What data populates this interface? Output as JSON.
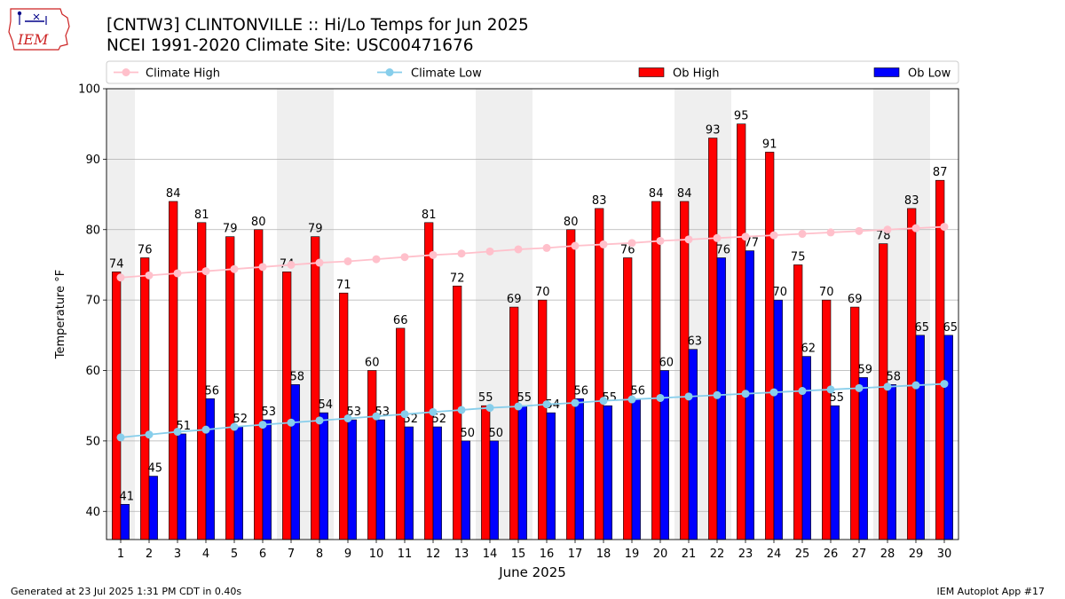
{
  "header": {
    "title_line1": "[CNTW3] CLINTONVILLE :: Hi/Lo Temps for Jun 2025",
    "title_line2": "NCEI 1991-2020 Climate Site: USC00471676",
    "logo_text": "IEM"
  },
  "footer": {
    "generated": "Generated at 23 Jul 2025 1:31 PM CDT in 0.40s",
    "app": "IEM Autoplot App #17"
  },
  "colors": {
    "ob_high": "#ff0000",
    "ob_low": "#0000ff",
    "climate_high": "#ffc0cb",
    "climate_low": "#87ceeb",
    "weekend_shade": "#efefef",
    "grid": "#b0b0b0"
  },
  "chart_data": {
    "type": "bar",
    "xlabel": "June 2025",
    "ylabel": "Temperature °F",
    "ylim": [
      36,
      100
    ],
    "yticks": [
      40,
      50,
      60,
      70,
      80,
      90,
      100
    ],
    "grid": "horizontal",
    "legend_position": "top",
    "categories": [
      "1",
      "2",
      "3",
      "4",
      "5",
      "6",
      "7",
      "8",
      "9",
      "10",
      "11",
      "12",
      "13",
      "14",
      "15",
      "16",
      "17",
      "18",
      "19",
      "20",
      "21",
      "22",
      "23",
      "24",
      "25",
      "26",
      "27",
      "28",
      "29",
      "30"
    ],
    "shaded_days": [
      1,
      7,
      8,
      14,
      15,
      21,
      22,
      28,
      29
    ],
    "series": [
      {
        "name": "Ob High",
        "kind": "bar",
        "values": [
          74,
          76,
          84,
          81,
          79,
          80,
          74,
          79,
          71,
          60,
          66,
          81,
          72,
          55,
          69,
          70,
          80,
          83,
          76,
          84,
          84,
          93,
          95,
          91,
          75,
          70,
          69,
          78,
          83,
          87
        ]
      },
      {
        "name": "Ob Low",
        "kind": "bar",
        "values": [
          41,
          45,
          51,
          56,
          52,
          53,
          58,
          54,
          53,
          53,
          52,
          52,
          50,
          50,
          55,
          54,
          56,
          55,
          56,
          60,
          63,
          76,
          77,
          70,
          62,
          55,
          59,
          58,
          65,
          65
        ]
      },
      {
        "name": "Climate High",
        "kind": "line",
        "values": [
          73.2,
          73.5,
          73.8,
          74.1,
          74.4,
          74.7,
          75.0,
          75.3,
          75.5,
          75.8,
          76.1,
          76.4,
          76.6,
          76.9,
          77.2,
          77.4,
          77.7,
          77.9,
          78.1,
          78.4,
          78.6,
          78.8,
          79.0,
          79.2,
          79.4,
          79.6,
          79.8,
          80.0,
          80.2,
          80.4
        ]
      },
      {
        "name": "Climate Low",
        "kind": "line",
        "values": [
          50.5,
          50.9,
          51.3,
          51.6,
          52.0,
          52.3,
          52.6,
          52.9,
          53.2,
          53.5,
          53.8,
          54.1,
          54.4,
          54.7,
          54.9,
          55.2,
          55.4,
          55.7,
          55.9,
          56.1,
          56.3,
          56.5,
          56.7,
          56.9,
          57.1,
          57.3,
          57.5,
          57.7,
          57.9,
          58.1
        ]
      }
    ]
  }
}
